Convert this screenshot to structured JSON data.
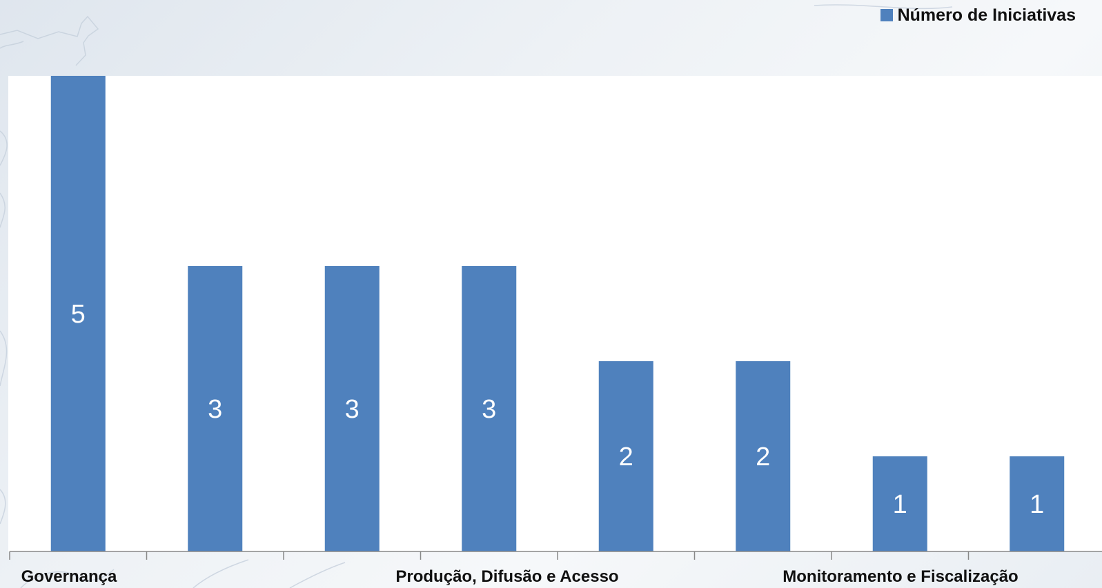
{
  "colors": {
    "bar": "#4f81bd",
    "axis": "#888888",
    "label_on_bar": "#ffffff",
    "text": "#111111"
  },
  "legend": {
    "label": "Número de Iniciativas"
  },
  "chart_data": {
    "type": "bar",
    "categories": [
      "Governança",
      "",
      "",
      "Produção, Difusão e Acesso",
      "",
      "",
      "Monitoramento e Fiscalização",
      ""
    ],
    "series": [
      {
        "name": "Número de Iniciativas",
        "values": [
          5,
          3,
          3,
          3,
          2,
          2,
          1,
          1
        ]
      }
    ],
    "data_labels": [
      "5",
      "3",
      "3",
      "3",
      "2",
      "2",
      "1",
      "1"
    ],
    "title": "",
    "xlabel": "",
    "ylabel": "",
    "ylim": [
      0,
      5
    ],
    "grid": false,
    "legend_position": "top-right"
  }
}
